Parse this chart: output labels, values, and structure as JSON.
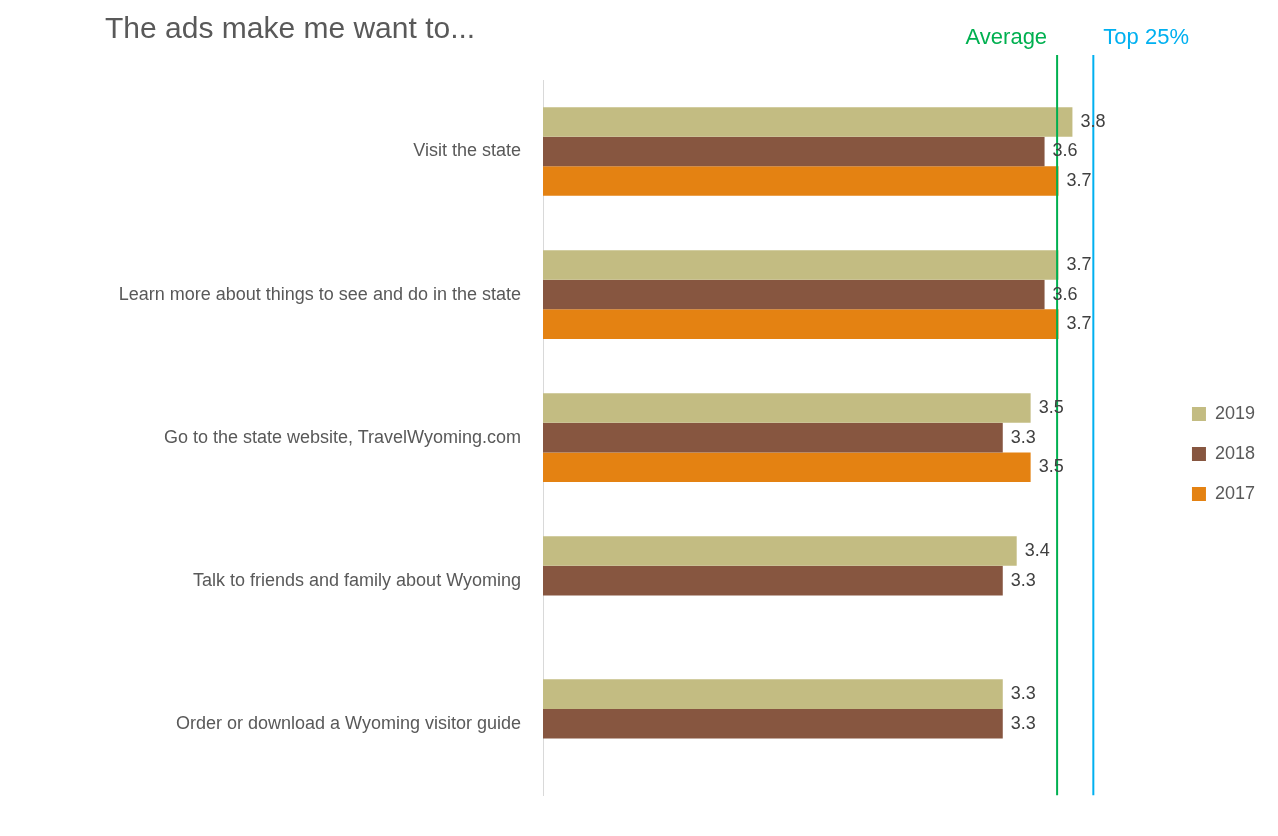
{
  "chart_data": {
    "type": "bar",
    "orientation": "horizontal",
    "title": "The ads make me want to...",
    "categories": [
      "Visit the state",
      "Learn more about things to see and do in the state",
      "Go to the state website, TravelWyoming.com",
      "Talk to friends and family about Wyoming",
      "Order or download a Wyoming visitor guide"
    ],
    "series": [
      {
        "name": "2019",
        "color": "#c3bc82",
        "values": [
          3.8,
          3.7,
          3.5,
          3.4,
          3.3
        ]
      },
      {
        "name": "2018",
        "color": "#875640",
        "values": [
          3.6,
          3.6,
          3.3,
          3.3,
          3.3
        ]
      },
      {
        "name": "2017",
        "color": "#e48212",
        "values": [
          3.7,
          3.7,
          3.5,
          null,
          null
        ]
      }
    ],
    "ref_lines": [
      {
        "axis": "x",
        "value": 3.69,
        "label": "Average",
        "color": "#00b050"
      },
      {
        "axis": "x",
        "value": 3.95,
        "label": "Top 25%",
        "color": "#00b0f0"
      }
    ],
    "data_labels": true,
    "legend": "right",
    "grid": false,
    "tick_labels": "y"
  }
}
